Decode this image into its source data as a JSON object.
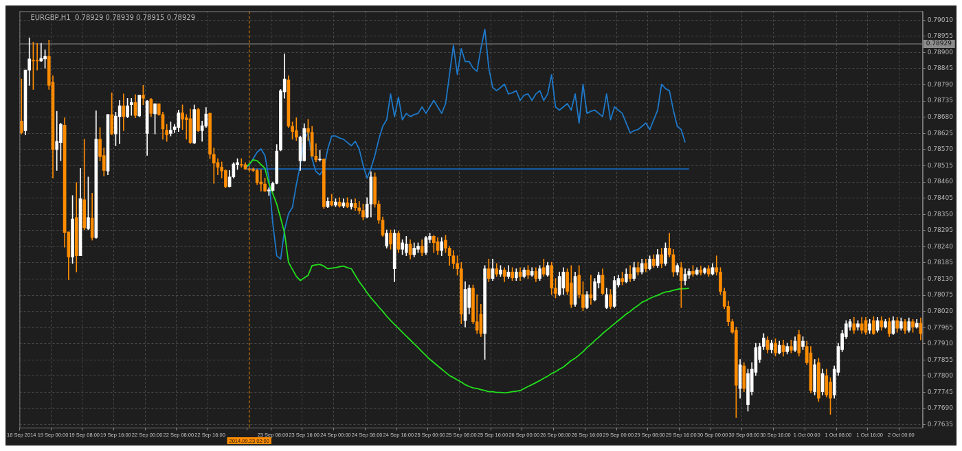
{
  "chart_data": {
    "type": "candlestick",
    "title": "EURGBP,H1  0.78929 0.78939 0.78915 0.78929",
    "categories": [
      "18 Sep 2014",
      null,
      null,
      null,
      null,
      null,
      null,
      null,
      "19 Sep 00:00",
      null,
      null,
      null,
      null,
      null,
      null,
      null,
      "19 Sep 08:00",
      null,
      null,
      null,
      null,
      null,
      null,
      null,
      "19 Sep 16:00",
      null,
      null,
      null,
      null,
      null,
      null,
      null,
      "22 Sep 00:00",
      null,
      null,
      null,
      null,
      null,
      null,
      null,
      "22 Sep 08:00",
      null,
      null,
      null,
      null,
      null,
      null,
      null,
      "22 Sep 16:00",
      null,
      null,
      null,
      null,
      null,
      null,
      null,
      null,
      null,
      "2014.09.23 02:00",
      null,
      null,
      null,
      null,
      null,
      "23 Sep 08:00",
      null,
      null,
      null,
      null,
      null,
      null,
      null,
      "23 Sep 16:00",
      null,
      null,
      null,
      null,
      null,
      null,
      null,
      "24 Sep 00:00",
      null,
      null,
      null,
      null,
      null,
      null,
      null,
      "24 Sep 08:00",
      null,
      null,
      null,
      null,
      null,
      null,
      null,
      "24 Sep 16:00",
      null,
      null,
      null,
      null,
      null,
      null,
      null,
      "25 Sep 00:00",
      null,
      null,
      null,
      null,
      null,
      null,
      null,
      "25 Sep 08:00",
      null,
      null,
      null,
      null,
      null,
      null,
      null,
      "25 Sep 16:00",
      null,
      null,
      null,
      null,
      null,
      null,
      null,
      "26 Sep 00:00",
      null,
      null,
      null,
      null,
      null,
      null,
      null,
      "26 Sep 08:00",
      null,
      null,
      null,
      null,
      null,
      null,
      null,
      "26 Sep 16:00",
      null,
      null,
      null,
      null,
      null,
      null,
      null,
      "29 Sep 00:00",
      null,
      null,
      null,
      null,
      null,
      null,
      null,
      "29 Sep 08:00",
      null,
      null,
      null,
      null,
      null,
      null,
      null,
      "29 Sep 16:00",
      null,
      null,
      null,
      null,
      null,
      null,
      null,
      "30 Sep 00:00",
      null,
      null,
      null,
      null,
      null,
      null,
      null,
      "30 Sep 08:00",
      null,
      null,
      null,
      null,
      null,
      null,
      null,
      "30 Sep 16:00",
      null,
      null,
      null,
      null,
      null,
      null,
      null,
      "1 Oct 00:00",
      null,
      null,
      null,
      null,
      null,
      null,
      null,
      "1 Oct 08:00",
      null,
      null,
      null,
      null,
      null,
      null,
      null,
      "1 Oct 16:00",
      null,
      null,
      null,
      null,
      null,
      null,
      null,
      "2 Oct 00:00",
      null,
      null,
      null,
      null,
      null
    ],
    "ohlc": [
      [
        0.78667,
        0.7881,
        0.78623,
        0.78627
      ],
      [
        0.78634,
        0.7884,
        0.7862,
        0.7884
      ],
      [
        0.7884,
        0.7895,
        0.78788,
        0.78878
      ],
      [
        0.78873,
        0.78935,
        0.78774,
        0.78871
      ],
      [
        0.78873,
        0.78931,
        0.7884,
        0.78871
      ],
      [
        0.78871,
        0.78931,
        0.78869,
        0.7888
      ],
      [
        0.78878,
        0.78909,
        0.78847,
        0.78887
      ],
      [
        0.78887,
        0.78942,
        0.78774,
        0.78788
      ],
      [
        0.78799,
        0.78821,
        0.78473,
        0.7857
      ],
      [
        0.7857,
        0.787,
        0.78499,
        0.78598
      ],
      [
        0.78594,
        0.7866,
        0.78532,
        0.78656
      ],
      [
        0.78653,
        0.78678,
        0.78238,
        0.78288
      ],
      [
        0.7829,
        0.7829,
        0.78128,
        0.78205
      ],
      [
        0.78205,
        0.78414,
        0.78183,
        0.78334
      ],
      [
        0.78339,
        0.78458,
        0.78154,
        0.78209
      ],
      [
        0.78209,
        0.78506,
        0.78209,
        0.78403
      ],
      [
        0.784,
        0.78605,
        0.78297,
        0.78304
      ],
      [
        0.78301,
        0.78477,
        0.78297,
        0.78339
      ],
      [
        0.78337,
        0.78422,
        0.78262,
        0.78271
      ],
      [
        0.78271,
        0.78702,
        0.78268,
        0.78605
      ],
      [
        0.78605,
        0.78645,
        0.78532,
        0.78546
      ],
      [
        0.7855,
        0.78576,
        0.7848,
        0.78499
      ],
      [
        0.78497,
        0.78689,
        0.78484,
        0.78689
      ],
      [
        0.78689,
        0.78763,
        0.7862,
        0.78623
      ],
      [
        0.78623,
        0.78697,
        0.78583,
        0.78684
      ],
      [
        0.78682,
        0.78737,
        0.7859,
        0.78719
      ],
      [
        0.78719,
        0.78759,
        0.78634,
        0.78682
      ],
      [
        0.78682,
        0.78744,
        0.78678,
        0.78719
      ],
      [
        0.78722,
        0.78744,
        0.78686,
        0.7873
      ],
      [
        0.7873,
        0.78757,
        0.78678,
        0.78686
      ],
      [
        0.78684,
        0.78755,
        0.78682,
        0.78755
      ],
      [
        0.78755,
        0.78788,
        0.78722,
        0.78744
      ],
      [
        0.78625,
        0.78737,
        0.7855,
        0.78735
      ],
      [
        0.78741,
        0.78744,
        0.78682,
        0.78693
      ],
      [
        0.78691,
        0.78726,
        0.78623,
        0.78726
      ],
      [
        0.78726,
        0.78726,
        0.78686,
        0.78689
      ],
      [
        0.78689,
        0.78697,
        0.78605,
        0.7864
      ],
      [
        0.78636,
        0.78656,
        0.78598,
        0.7862
      ],
      [
        0.78625,
        0.78664,
        0.78616,
        0.78636
      ],
      [
        0.78638,
        0.78656,
        0.78627,
        0.78647
      ],
      [
        0.78645,
        0.78704,
        0.78631,
        0.78695
      ],
      [
        0.78695,
        0.78722,
        0.78638,
        0.78673
      ],
      [
        0.78678,
        0.78689,
        0.78605,
        0.78671
      ],
      [
        0.78675,
        0.78708,
        0.7859,
        0.78594
      ],
      [
        0.78592,
        0.78722,
        0.7859,
        0.78706
      ],
      [
        0.78706,
        0.78711,
        0.78631,
        0.78634
      ],
      [
        0.78634,
        0.78667,
        0.78598,
        0.78651
      ],
      [
        0.78649,
        0.78713,
        0.78645,
        0.78691
      ],
      [
        0.78693,
        0.78695,
        0.78539,
        0.78554
      ],
      [
        0.78554,
        0.78576,
        0.78455,
        0.78524
      ],
      [
        0.78526,
        0.78539,
        0.78484,
        0.7851
      ],
      [
        0.7851,
        0.78528,
        0.78473,
        0.78497
      ],
      [
        0.78499,
        0.78502,
        0.7844,
        0.78444
      ],
      [
        0.78444,
        0.78499,
        0.78442,
        0.78477
      ],
      [
        0.78477,
        0.78526,
        0.78473,
        0.78521
      ],
      [
        0.78519,
        0.78539,
        0.78502,
        0.78526
      ],
      [
        0.78519,
        0.78539,
        0.7851,
        0.78517
      ],
      [
        0.78519,
        0.78526,
        0.78502,
        0.78504
      ],
      [
        0.78504,
        0.78508,
        0.78497,
        0.78502
      ],
      [
        0.78504,
        0.78508,
        0.78495,
        0.78499
      ],
      [
        0.78499,
        0.78504,
        0.78451,
        0.78458
      ],
      [
        0.7846,
        0.78502,
        0.78429,
        0.78453
      ],
      [
        0.78453,
        0.78473,
        0.78427,
        0.78429
      ],
      [
        0.78429,
        0.7844,
        0.78414,
        0.78433
      ],
      [
        0.78431,
        0.7846,
        0.78429,
        0.78455
      ],
      [
        0.78455,
        0.78587,
        0.78453,
        0.78565
      ],
      [
        0.78568,
        0.78774,
        0.78565,
        0.7877
      ],
      [
        0.78766,
        0.78895,
        0.78744,
        0.7881
      ],
      [
        0.78807,
        0.78821,
        0.78645,
        0.78649
      ],
      [
        0.78649,
        0.78664,
        0.78605,
        0.78631
      ],
      [
        0.78634,
        0.78678,
        0.78601,
        0.78612
      ],
      [
        0.78532,
        0.78616,
        0.78499,
        0.78612
      ],
      [
        0.78532,
        0.78658,
        0.7853,
        0.78642
      ],
      [
        0.78642,
        0.78673,
        0.78601,
        0.78629
      ],
      [
        0.78629,
        0.78649,
        0.78546,
        0.78548
      ],
      [
        0.78548,
        0.7859,
        0.78528,
        0.78535
      ],
      [
        0.78535,
        0.78568,
        0.7853,
        0.78537
      ],
      [
        0.78537,
        0.78539,
        0.7837,
        0.78376
      ],
      [
        0.78376,
        0.78407,
        0.78372,
        0.78394
      ],
      [
        0.78394,
        0.78418,
        0.78378,
        0.78381
      ],
      [
        0.78381,
        0.78403,
        0.78376,
        0.78392
      ],
      [
        0.78392,
        0.78407,
        0.78374,
        0.78378
      ],
      [
        0.78378,
        0.78403,
        0.78372,
        0.78389
      ],
      [
        0.78389,
        0.78407,
        0.78372,
        0.78376
      ],
      [
        0.78376,
        0.784,
        0.78367,
        0.78387
      ],
      [
        0.78387,
        0.78403,
        0.78363,
        0.78372
      ],
      [
        0.78372,
        0.78394,
        0.78352,
        0.78363
      ],
      [
        0.78363,
        0.78385,
        0.7833,
        0.78341
      ],
      [
        0.78341,
        0.78407,
        0.78337,
        0.78385
      ],
      [
        0.78385,
        0.78495,
        0.78341,
        0.78477
      ],
      [
        0.78477,
        0.78491,
        0.78374,
        0.78385
      ],
      [
        0.78385,
        0.78396,
        0.78319,
        0.7833
      ],
      [
        0.7833,
        0.78341,
        0.78275,
        0.78279
      ],
      [
        0.78242,
        0.78297,
        0.78235,
        0.78286
      ],
      [
        0.78286,
        0.78297,
        0.78231,
        0.78249
      ],
      [
        0.78165,
        0.78297,
        0.78121,
        0.78286
      ],
      [
        0.78286,
        0.78293,
        0.7822,
        0.78231
      ],
      [
        0.78231,
        0.78264,
        0.78213,
        0.78253
      ],
      [
        0.7822,
        0.78275,
        0.78209,
        0.78249
      ],
      [
        0.78249,
        0.78264,
        0.78198,
        0.78213
      ],
      [
        0.78213,
        0.78253,
        0.78205,
        0.78235
      ],
      [
        0.78231,
        0.78253,
        0.7822,
        0.78242
      ],
      [
        0.78242,
        0.78264,
        0.78209,
        0.7822
      ],
      [
        0.7822,
        0.78275,
        0.78213,
        0.78271
      ],
      [
        0.78264,
        0.78286,
        0.78253,
        0.78275
      ],
      [
        0.78275,
        0.78279,
        0.7822,
        0.78253
      ],
      [
        0.78257,
        0.78271,
        0.78213,
        0.78227
      ],
      [
        0.78227,
        0.78271,
        0.78209,
        0.78257
      ],
      [
        0.78262,
        0.78279,
        0.7822,
        0.78235
      ],
      [
        0.78235,
        0.78242,
        0.78176,
        0.78209
      ],
      [
        0.78209,
        0.78227,
        0.78165,
        0.78183
      ],
      [
        0.78183,
        0.78209,
        0.78143,
        0.78165
      ],
      [
        0.78165,
        0.78187,
        0.77978,
        0.78011
      ],
      [
        0.77989,
        0.78121,
        0.77967,
        0.78095
      ],
      [
        0.78033,
        0.7811,
        0.78011,
        0.78099
      ],
      [
        0.78099,
        0.7811,
        0.77978,
        0.77985
      ],
      [
        0.77985,
        0.78077,
        0.77945,
        0.77956
      ],
      [
        0.78011,
        0.78044,
        0.77934,
        0.77945
      ],
      [
        0.77945,
        0.78176,
        0.77857,
        0.78165
      ],
      [
        0.78165,
        0.78198,
        0.78121,
        0.78132
      ],
      [
        0.78132,
        0.78198,
        0.78125,
        0.78165
      ],
      [
        0.78165,
        0.78183,
        0.78139,
        0.78147
      ],
      [
        0.78147,
        0.78176,
        0.78139,
        0.78161
      ],
      [
        0.78161,
        0.78169,
        0.78121,
        0.78139
      ],
      [
        0.78139,
        0.78176,
        0.78132,
        0.78154
      ],
      [
        0.78154,
        0.78169,
        0.78125,
        0.78134
      ],
      [
        0.78134,
        0.78165,
        0.78125,
        0.78154
      ],
      [
        0.78154,
        0.78169,
        0.78125,
        0.78139
      ],
      [
        0.78139,
        0.78169,
        0.78134,
        0.78161
      ],
      [
        0.78161,
        0.78176,
        0.78132,
        0.78143
      ],
      [
        0.78143,
        0.78169,
        0.78139,
        0.78156
      ],
      [
        0.78156,
        0.78169,
        0.78121,
        0.78132
      ],
      [
        0.78132,
        0.78176,
        0.78125,
        0.78165
      ],
      [
        0.78169,
        0.78198,
        0.78139,
        0.78147
      ],
      [
        0.78143,
        0.78187,
        0.78139,
        0.78176
      ],
      [
        0.78176,
        0.78187,
        0.78077,
        0.78099
      ],
      [
        0.78099,
        0.78132,
        0.78066,
        0.78081
      ],
      [
        0.78077,
        0.78154,
        0.78073,
        0.78139
      ],
      [
        0.78099,
        0.78169,
        0.78077,
        0.78154
      ],
      [
        0.78154,
        0.78165,
        0.78077,
        0.78088
      ],
      [
        0.78117,
        0.78176,
        0.78033,
        0.78044
      ],
      [
        0.78044,
        0.78154,
        0.78037,
        0.78139
      ],
      [
        0.78143,
        0.78176,
        0.78066,
        0.78077
      ],
      [
        0.78077,
        0.78121,
        0.78022,
        0.78033
      ],
      [
        0.78033,
        0.78088,
        0.78029,
        0.78077
      ],
      [
        0.78077,
        0.78143,
        0.78044,
        0.78066
      ],
      [
        0.78059,
        0.78132,
        0.78055,
        0.78121
      ],
      [
        0.78117,
        0.78154,
        0.78099,
        0.78143
      ],
      [
        0.78143,
        0.78165,
        0.78077,
        0.78081
      ],
      [
        0.78033,
        0.78099,
        0.78029,
        0.78077
      ],
      [
        0.78077,
        0.78095,
        0.78029,
        0.78037
      ],
      [
        0.78037,
        0.78139,
        0.78033,
        0.78125
      ],
      [
        0.7811,
        0.78143,
        0.78103,
        0.78132
      ],
      [
        0.78132,
        0.78154,
        0.7811,
        0.78121
      ],
      [
        0.78121,
        0.78165,
        0.78117,
        0.78147
      ],
      [
        0.78147,
        0.78176,
        0.78121,
        0.78132
      ],
      [
        0.78132,
        0.78187,
        0.78125,
        0.78169
      ],
      [
        0.78169,
        0.78187,
        0.78143,
        0.78154
      ],
      [
        0.78154,
        0.78198,
        0.78147,
        0.78183
      ],
      [
        0.78183,
        0.78198,
        0.78154,
        0.78165
      ],
      [
        0.78165,
        0.78209,
        0.78161,
        0.78198
      ],
      [
        0.78198,
        0.78213,
        0.78169,
        0.78176
      ],
      [
        0.78176,
        0.78231,
        0.78169,
        0.78213
      ],
      [
        0.78213,
        0.78235,
        0.78169,
        0.78183
      ],
      [
        0.78183,
        0.78253,
        0.78176,
        0.78235
      ],
      [
        0.78235,
        0.78286,
        0.78205,
        0.78213
      ],
      [
        0.78213,
        0.78231,
        0.78139,
        0.78154
      ],
      [
        0.78154,
        0.78183,
        0.78143,
        0.78176
      ],
      [
        0.78169,
        0.78187,
        0.78033,
        0.78125
      ],
      [
        0.78125,
        0.78165,
        0.7811,
        0.78147
      ],
      [
        0.78143,
        0.78165,
        0.78132,
        0.78156
      ],
      [
        0.78156,
        0.78176,
        0.78139,
        0.78147
      ],
      [
        0.78147,
        0.78169,
        0.78143,
        0.78161
      ],
      [
        0.78161,
        0.78174,
        0.78143,
        0.78152
      ],
      [
        0.78152,
        0.78169,
        0.78147,
        0.78165
      ],
      [
        0.78165,
        0.78176,
        0.78139,
        0.78147
      ],
      [
        0.78147,
        0.78183,
        0.78143,
        0.78169
      ],
      [
        0.78169,
        0.78209,
        0.78143,
        0.78154
      ],
      [
        0.78154,
        0.78169,
        0.78077,
        0.78088
      ],
      [
        0.78088,
        0.78099,
        0.78029,
        0.78037
      ],
      [
        0.78037,
        0.78055,
        0.77971,
        0.77985
      ],
      [
        0.77985,
        0.77993,
        0.77945,
        0.77949
      ],
      [
        0.77956,
        0.77967,
        0.77659,
        0.77769
      ],
      [
        0.77758,
        0.77857,
        0.77725,
        0.77839
      ],
      [
        0.77835,
        0.77846,
        0.77747,
        0.77758
      ],
      [
        0.77703,
        0.77824,
        0.77681,
        0.77809
      ],
      [
        0.77747,
        0.77846,
        0.77736,
        0.77824
      ],
      [
        0.77813,
        0.77912,
        0.77802,
        0.77897
      ],
      [
        0.77857,
        0.77912,
        0.77846,
        0.77901
      ],
      [
        0.77901,
        0.77945,
        0.7789,
        0.7793
      ],
      [
        0.77923,
        0.77934,
        0.77879,
        0.7789
      ],
      [
        0.7789,
        0.77923,
        0.77879,
        0.77912
      ],
      [
        0.77912,
        0.77927,
        0.77868,
        0.77879
      ],
      [
        0.77879,
        0.77919,
        0.77875,
        0.77905
      ],
      [
        0.77905,
        0.77923,
        0.77868,
        0.77883
      ],
      [
        0.77883,
        0.77912,
        0.77875,
        0.77901
      ],
      [
        0.77901,
        0.77923,
        0.77879,
        0.77888
      ],
      [
        0.77888,
        0.77934,
        0.77883,
        0.77919
      ],
      [
        0.77941,
        0.77956,
        0.77868,
        0.77879
      ],
      [
        0.77901,
        0.77934,
        0.7789,
        0.77919
      ],
      [
        0.77901,
        0.77919,
        0.77839,
        0.77846
      ],
      [
        0.77879,
        0.77901,
        0.77743,
        0.77751
      ],
      [
        0.77747,
        0.77857,
        0.77736,
        0.77839
      ],
      [
        0.77846,
        0.77861,
        0.77714,
        0.77725
      ],
      [
        0.77747,
        0.77824,
        0.77736,
        0.77809
      ],
      [
        0.77802,
        0.77824,
        0.77729,
        0.77736
      ],
      [
        0.7778,
        0.77795,
        0.7767,
        0.77725
      ],
      [
        0.77736,
        0.77835,
        0.77725,
        0.77824
      ],
      [
        0.77813,
        0.77912,
        0.77802,
        0.77901
      ],
      [
        0.7789,
        0.77956,
        0.77883,
        0.77945
      ],
      [
        0.77934,
        0.77989,
        0.77927,
        0.77978
      ],
      [
        0.77967,
        0.77993,
        0.77956,
        0.77985
      ],
      [
        0.77978,
        0.78,
        0.77945,
        0.77956
      ],
      [
        0.77967,
        0.77989,
        0.77956,
        0.77978
      ],
      [
        0.77978,
        0.78,
        0.77945,
        0.77956
      ],
      [
        0.77989,
        0.78,
        0.77941,
        0.77949
      ],
      [
        0.77956,
        0.77993,
        0.77945,
        0.77978
      ],
      [
        0.77989,
        0.78002,
        0.77941,
        0.77945
      ],
      [
        0.77956,
        0.78,
        0.77949,
        0.77989
      ],
      [
        0.77989,
        0.78002,
        0.77956,
        0.77967
      ],
      [
        0.77967,
        0.77993,
        0.77963,
        0.77985
      ],
      [
        0.77985,
        0.77998,
        0.77934,
        0.77945
      ],
      [
        0.77945,
        0.78002,
        0.77941,
        0.77989
      ],
      [
        0.77989,
        0.78,
        0.77949,
        0.77963
      ],
      [
        0.77963,
        0.77998,
        0.77956,
        0.77985
      ],
      [
        0.77985,
        0.77993,
        0.77945,
        0.77956
      ],
      [
        0.77956,
        0.77998,
        0.77949,
        0.77985
      ],
      [
        0.77985,
        0.77993,
        0.77949,
        0.77967
      ],
      [
        0.77967,
        0.77993,
        0.77963,
        0.7798
      ],
      [
        0.7798,
        0.77998,
        0.77923,
        0.77945
      ]
    ],
    "series": [
      {
        "type": "line",
        "color": "#22e01c",
        "values": [
          null,
          null,
          null,
          null,
          null,
          null,
          null,
          null,
          null,
          null,
          null,
          null,
          null,
          null,
          null,
          null,
          null,
          null,
          null,
          null,
          null,
          null,
          null,
          null,
          null,
          null,
          null,
          null,
          null,
          null,
          null,
          null,
          null,
          null,
          null,
          null,
          null,
          null,
          null,
          null,
          null,
          null,
          null,
          null,
          null,
          null,
          null,
          null,
          null,
          null,
          null,
          null,
          null,
          null,
          null,
          null,
          null,
          0.78508,
          0.78521,
          0.78535,
          0.78532,
          0.78519,
          0.78506,
          0.78455,
          0.7842,
          0.78385,
          0.78337,
          0.78286,
          0.78187,
          0.78163,
          0.78139,
          0.78125,
          0.78134,
          0.78143,
          0.78176,
          0.78178,
          0.7818,
          0.78174,
          0.78165,
          0.78167,
          0.78169,
          0.78172,
          0.78174,
          0.78169,
          0.78165,
          0.78143,
          0.78121,
          0.78103,
          0.78084,
          0.78066,
          0.78051,
          0.78035,
          0.7802,
          0.78004,
          0.77989,
          0.77976,
          0.77963,
          0.77949,
          0.77936,
          0.77923,
          0.7791,
          0.77897,
          0.77883,
          0.7787,
          0.77857,
          0.77846,
          0.77835,
          0.77824,
          0.77813,
          0.77802,
          0.77795,
          0.77787,
          0.7778,
          0.77771,
          0.77765,
          0.7776,
          0.77758,
          0.77754,
          0.77751,
          0.77747,
          0.77747,
          0.77745,
          0.77745,
          0.77743,
          0.77745,
          0.77747,
          0.77749,
          0.77751,
          0.77758,
          0.77765,
          0.77771,
          0.77778,
          0.77785,
          0.77793,
          0.778,
          0.77809,
          0.77815,
          0.77824,
          0.77831,
          0.77842,
          0.77853,
          0.77861,
          0.77872,
          0.77883,
          0.77897,
          0.77908,
          0.77921,
          0.77932,
          0.77945,
          0.77956,
          0.77967,
          0.77978,
          0.77989,
          0.78,
          0.78011,
          0.7802,
          0.78031,
          0.7804,
          0.78051,
          0.78057,
          0.78064,
          0.7807,
          0.78075,
          0.78081,
          0.78086,
          0.78088,
          0.78092,
          0.78095,
          0.78097,
          0.78097,
          0.78099,
          null,
          null,
          null,
          null,
          null,
          null,
          null,
          null,
          null,
          null,
          null,
          null,
          null,
          null,
          null,
          null,
          null,
          null,
          null,
          null,
          null,
          null,
          null,
          null,
          null,
          null,
          null,
          null,
          null,
          null,
          null,
          null,
          null,
          null,
          null,
          null,
          null,
          null,
          null,
          null,
          null,
          null,
          null,
          null,
          null,
          null,
          null,
          null,
          null,
          null,
          null,
          null,
          null,
          null,
          null,
          null,
          null,
          null,
          null
        ]
      },
      {
        "type": "line",
        "color": "#1e78c8",
        "values": [
          null,
          null,
          null,
          null,
          null,
          null,
          null,
          null,
          null,
          null,
          null,
          null,
          null,
          null,
          null,
          null,
          null,
          null,
          null,
          null,
          null,
          null,
          null,
          null,
          null,
          null,
          null,
          null,
          null,
          null,
          null,
          null,
          null,
          null,
          null,
          null,
          null,
          null,
          null,
          null,
          null,
          null,
          null,
          null,
          null,
          null,
          null,
          null,
          null,
          null,
          null,
          null,
          null,
          null,
          null,
          null,
          null,
          0.78508,
          0.78517,
          0.78539,
          0.78561,
          0.78572,
          0.7855,
          0.78473,
          0.78319,
          0.78209,
          0.78198,
          0.78297,
          0.78352,
          0.78374,
          0.78451,
          0.78517,
          0.78605,
          0.78627,
          0.78539,
          0.78495,
          0.78484,
          0.78506,
          0.78572,
          0.78616,
          0.78616,
          0.78609,
          0.78605,
          0.78594,
          0.78583,
          0.78598,
          0.78572,
          0.78517,
          0.78473,
          0.78506,
          0.7855,
          0.78605,
          0.78649,
          0.78671,
          0.78759,
          0.78682,
          0.78748,
          0.78671,
          0.78693,
          0.78682,
          0.78689,
          0.78693,
          0.78715,
          0.78693,
          0.78715,
          0.78737,
          0.78715,
          0.78693,
          0.78726,
          0.78825,
          0.78924,
          0.78825,
          0.78913,
          0.78869,
          0.78869,
          0.78847,
          0.78836,
          0.78913,
          0.78979,
          0.78847,
          0.78781,
          0.7877,
          0.78781,
          0.78792,
          0.78759,
          0.78763,
          0.7877,
          0.78737,
          0.78755,
          0.78759,
          0.78737,
          0.78759,
          0.7877,
          0.78737,
          0.78759,
          0.78825,
          0.78715,
          0.78704,
          0.78715,
          0.78726,
          0.78704,
          0.78759,
          0.7866,
          0.78792,
          0.78693,
          0.787,
          0.78704,
          0.78693,
          0.78682,
          0.78759,
          0.78671,
          0.78715,
          0.78704,
          0.78693,
          0.7866,
          0.78627,
          0.78634,
          0.78638,
          0.78649,
          0.7866,
          0.78638,
          0.78671,
          0.78704,
          0.78792,
          0.78777,
          0.7877,
          0.78704,
          0.78649,
          0.78638,
          0.78594,
          null,
          null,
          null,
          null,
          null,
          null,
          null,
          null,
          null,
          null,
          null,
          null,
          null,
          null,
          null,
          null,
          null,
          null,
          null,
          null,
          null,
          null,
          null,
          null,
          null,
          null,
          null,
          null,
          null,
          null,
          null,
          null,
          null,
          null,
          null,
          null,
          null,
          null,
          null,
          null,
          null,
          null,
          null,
          null,
          null,
          null,
          null,
          null,
          null,
          null,
          null,
          null,
          null,
          null,
          null,
          null,
          null,
          null,
          null,
          null
        ]
      },
      {
        "type": "line",
        "color": "#1565c0",
        "values": [
          null,
          null,
          null,
          null,
          null,
          null,
          null,
          null,
          null,
          null,
          null,
          null,
          null,
          null,
          null,
          null,
          null,
          null,
          null,
          null,
          null,
          null,
          null,
          null,
          null,
          null,
          null,
          null,
          null,
          null,
          null,
          null,
          null,
          null,
          null,
          null,
          null,
          null,
          null,
          null,
          null,
          null,
          null,
          null,
          null,
          null,
          null,
          null,
          null,
          null,
          null,
          null,
          null,
          null,
          null,
          null,
          null,
          0.78504,
          0.78504,
          0.78504,
          0.78504,
          0.78504,
          0.78504,
          0.78504,
          0.78504,
          0.78504,
          0.78504,
          0.78504,
          0.78504,
          0.78504,
          0.78504,
          0.78504,
          0.78504,
          0.78504,
          0.78504,
          0.78504,
          0.78504,
          0.78504,
          0.78504,
          0.78504,
          0.78504,
          0.78504,
          0.78504,
          0.78504,
          0.78504,
          0.78504,
          0.78504,
          0.78504,
          0.78504,
          0.78504,
          0.78504,
          0.78504,
          0.78504,
          0.78504,
          0.78504,
          0.78504,
          0.78504,
          0.78504,
          0.78504,
          0.78504,
          0.78504,
          0.78504,
          0.78504,
          0.78504,
          0.78504,
          0.78504,
          0.78504,
          0.78504,
          0.78504,
          0.78504,
          0.78504,
          0.78504,
          0.78504,
          0.78504,
          0.78504,
          0.78504,
          0.78504,
          0.78504,
          0.78504,
          0.78504,
          0.78504,
          0.78504,
          0.78504,
          0.78504,
          0.78504,
          0.78504,
          0.78504,
          0.78504,
          0.78504,
          0.78504,
          0.78504,
          0.78504,
          0.78504,
          0.78504,
          0.78504,
          0.78504,
          0.78504,
          0.78504,
          0.78504,
          0.78504,
          0.78504,
          0.78504,
          0.78504,
          0.78504,
          0.78504,
          0.78504,
          0.78504,
          0.78504,
          0.78504,
          0.78504,
          0.78504,
          0.78504,
          0.78504,
          0.78504,
          0.78504,
          0.78504,
          0.78504,
          0.78504,
          0.78504,
          0.78504,
          0.78504,
          0.78504,
          0.78504,
          0.78504,
          0.78504,
          0.78504,
          0.78504,
          0.78504,
          0.78504,
          0.78504,
          0.78504,
          null,
          null,
          null,
          null,
          null,
          null,
          null,
          null,
          null,
          null,
          null,
          null,
          null,
          null,
          null,
          null,
          null,
          null,
          null,
          null,
          null,
          null,
          null,
          null,
          null,
          null,
          null,
          null,
          null,
          null,
          null,
          null,
          null,
          null,
          null,
          null,
          null,
          null,
          null,
          null,
          null,
          null,
          null,
          null,
          null,
          null,
          null,
          null,
          null,
          null,
          null,
          null,
          null,
          null,
          null,
          null,
          null,
          null,
          null
        ]
      }
    ],
    "ylim": [
      0.77625,
      0.7904
    ],
    "yticks": [
      {
        "value": 0.7901,
        "label": "0.79010"
      },
      0.78955,
      {
        "value": 0.789,
        "label": "0.78900"
      },
      0.78845,
      {
        "value": 0.7879,
        "label": "0.78790"
      },
      0.78735,
      {
        "value": 0.7868,
        "label": "0.78680"
      },
      0.78625,
      {
        "value": 0.7857,
        "label": "0.78570"
      },
      0.78515,
      {
        "value": 0.7846,
        "label": "0.78460"
      },
      0.78405,
      {
        "value": 0.7835,
        "label": "0.78350"
      },
      0.78295,
      {
        "value": 0.7824,
        "label": "0.78240"
      },
      0.78185,
      {
        "value": 0.7813,
        "label": "0.78130"
      },
      0.78075,
      {
        "value": 0.7802,
        "label": "0.78020"
      },
      0.77965,
      {
        "value": 0.7791,
        "label": "0.77910"
      },
      0.77855,
      {
        "value": 0.778,
        "label": "0.77800"
      },
      0.77745,
      {
        "value": 0.7769,
        "label": "0.77690"
      },
      0.77635
    ],
    "ref_lines": [
      {
        "axis": "y",
        "value": 0.78929,
        "label": "0.78929",
        "color": "#8c8c8c"
      },
      {
        "axis": "x",
        "value": "2014.09.23 02:00",
        "color": "#ff8c00",
        "line_style": "dashed"
      }
    ],
    "grid": true
  }
}
